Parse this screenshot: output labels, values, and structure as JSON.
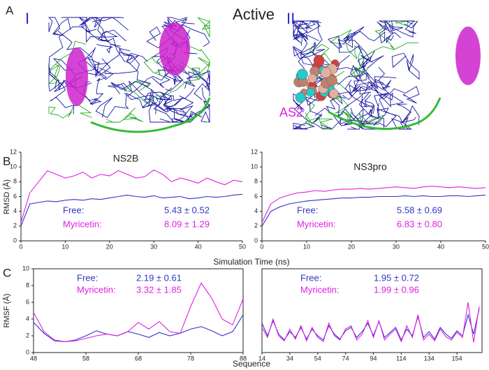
{
  "figure": {
    "panel_labels": [
      "A",
      "B",
      "C"
    ],
    "title": "Active",
    "structures": [
      {
        "label": "I"
      },
      {
        "label": "II",
        "site": "AS2"
      }
    ]
  },
  "chart_data": [
    {
      "type": "line",
      "title": "NS2B",
      "xlabel": "Simulation Time (ns)",
      "ylabel": "RMSD (Å)",
      "x": [
        0,
        2,
        4,
        6,
        8,
        10,
        12,
        14,
        16,
        18,
        20,
        22,
        24,
        26,
        28,
        30,
        32,
        34,
        36,
        38,
        40,
        42,
        44,
        46,
        48,
        50
      ],
      "series": [
        {
          "name": "Free",
          "color": "#3333cc",
          "values": [
            2.0,
            5.0,
            5.2,
            5.4,
            5.3,
            5.5,
            5.6,
            5.5,
            5.7,
            5.6,
            5.8,
            6.0,
            6.2,
            6.0,
            5.9,
            6.1,
            5.8,
            5.9,
            6.0,
            5.7,
            5.8,
            6.0,
            5.9,
            6.0,
            6.2,
            6.3
          ]
        },
        {
          "name": "Myricetin",
          "color": "#e020e0",
          "values": [
            2.5,
            6.5,
            8.0,
            9.5,
            9.0,
            8.5,
            8.8,
            9.3,
            8.5,
            9.0,
            8.8,
            9.5,
            9.0,
            8.5,
            8.7,
            9.6,
            9.0,
            8.0,
            8.5,
            8.2,
            7.8,
            8.5,
            8.0,
            7.6,
            8.2,
            8.0
          ]
        }
      ],
      "annotations": [
        {
          "label": "Free:",
          "text": "5.43 ± 0.52"
        },
        {
          "label": "Myricetin:",
          "text": "8.09 ± 1.29"
        }
      ],
      "xlim": [
        0,
        50
      ],
      "xticks": [
        0,
        10,
        20,
        30,
        40,
        50
      ],
      "ylim": [
        0,
        12
      ],
      "yticks": [
        0,
        2,
        4,
        6,
        8,
        10,
        12
      ]
    },
    {
      "type": "line",
      "title": "NS3pro",
      "x": [
        0,
        2,
        4,
        6,
        8,
        10,
        12,
        14,
        16,
        18,
        20,
        22,
        24,
        26,
        28,
        30,
        32,
        34,
        36,
        38,
        40,
        42,
        44,
        46,
        48,
        50
      ],
      "series": [
        {
          "name": "Free",
          "color": "#3333cc",
          "values": [
            2.0,
            4.0,
            4.6,
            5.0,
            5.2,
            5.4,
            5.5,
            5.6,
            5.7,
            5.8,
            5.8,
            5.9,
            5.9,
            6.0,
            6.0,
            6.0,
            6.1,
            6.0,
            6.1,
            6.0,
            6.0,
            6.1,
            6.1,
            6.0,
            6.1,
            6.2
          ]
        },
        {
          "name": "Myricetin",
          "color": "#e020e0",
          "values": [
            2.5,
            5.0,
            5.8,
            6.2,
            6.5,
            6.6,
            6.8,
            6.7,
            6.9,
            7.0,
            7.0,
            7.1,
            7.0,
            7.1,
            7.2,
            7.3,
            7.2,
            7.1,
            7.3,
            7.4,
            7.3,
            7.2,
            7.3,
            7.2,
            7.1,
            7.2
          ]
        }
      ],
      "annotations": [
        {
          "label": "Free:",
          "text": "5.58 ± 0.69"
        },
        {
          "label": "Myricetin:",
          "text": "6.83 ± 0.80"
        }
      ],
      "xlim": [
        0,
        50
      ],
      "xticks": [
        0,
        10,
        20,
        30,
        40,
        50
      ],
      "ylim": [
        0,
        12
      ],
      "yticks": [
        0,
        2,
        4,
        6,
        8,
        10,
        12
      ]
    },
    {
      "type": "line",
      "xlabel": "Sequence",
      "ylabel": "RMSF (Å)",
      "x": [
        48,
        50,
        52,
        54,
        56,
        58,
        60,
        62,
        64,
        66,
        68,
        70,
        72,
        74,
        76,
        78,
        80,
        82,
        84,
        86,
        88
      ],
      "series": [
        {
          "name": "Free",
          "color": "#3333cc",
          "values": [
            3.6,
            2.3,
            1.4,
            1.3,
            1.5,
            2.0,
            2.6,
            2.2,
            2.0,
            2.5,
            2.2,
            1.8,
            2.4,
            2.0,
            2.3,
            2.8,
            3.1,
            2.6,
            2.0,
            2.5,
            4.5
          ]
        },
        {
          "name": "Myricetin",
          "color": "#e020e0",
          "values": [
            4.8,
            2.5,
            1.5,
            1.3,
            1.4,
            1.7,
            2.0,
            2.2,
            2.0,
            2.5,
            3.6,
            2.8,
            3.7,
            2.5,
            2.3,
            5.5,
            8.3,
            6.5,
            4.0,
            3.3,
            6.4
          ]
        }
      ],
      "annotations": [
        {
          "label": "Free:",
          "text": "2.19 ± 0.61"
        },
        {
          "label": "Myricetin:",
          "text": "3.32 ± 1.85"
        }
      ],
      "xlim": [
        48,
        88
      ],
      "xticks": [
        48,
        58,
        68,
        78,
        88
      ],
      "ylim": [
        0,
        10
      ],
      "yticks": [
        0,
        2,
        4,
        6,
        8,
        10
      ]
    },
    {
      "type": "line",
      "x": [
        14,
        18,
        22,
        26,
        30,
        34,
        38,
        42,
        46,
        50,
        54,
        58,
        62,
        66,
        70,
        74,
        78,
        82,
        86,
        90,
        94,
        98,
        102,
        106,
        110,
        114,
        118,
        122,
        126,
        130,
        134,
        138,
        142,
        146,
        150,
        154,
        158,
        162,
        166,
        170
      ],
      "series": [
        {
          "name": "Free",
          "color": "#3333cc",
          "values": [
            3.5,
            2.0,
            3.8,
            2.2,
            1.5,
            2.5,
            1.8,
            3.0,
            1.6,
            2.8,
            2.0,
            1.5,
            3.2,
            2.2,
            1.6,
            2.6,
            3.0,
            1.8,
            2.5,
            3.5,
            2.0,
            3.7,
            1.8,
            2.4,
            3.0,
            1.5,
            2.8,
            2.0,
            4.3,
            1.8,
            2.5,
            1.6,
            3.0,
            2.2,
            1.7,
            2.6,
            2.0,
            4.5,
            2.2,
            5.2
          ]
        },
        {
          "name": "Myricetin",
          "color": "#e020e0",
          "values": [
            3.0,
            1.8,
            4.0,
            2.0,
            1.4,
            2.8,
            1.6,
            3.2,
            1.4,
            3.0,
            1.8,
            1.3,
            3.5,
            2.0,
            1.5,
            2.8,
            3.2,
            1.5,
            2.2,
            3.8,
            1.8,
            3.8,
            1.5,
            2.2,
            2.8,
            1.3,
            3.2,
            1.8,
            4.5,
            1.5,
            2.2,
            1.4,
            2.8,
            1.9,
            1.5,
            2.4,
            1.8,
            6.0,
            1.2,
            5.5
          ]
        }
      ],
      "annotations": [
        {
          "label": "Free:",
          "text": "1.95 ± 0.72"
        },
        {
          "label": "Myricetin:",
          "text": "1.99 ± 0.96"
        }
      ],
      "xlim": [
        14,
        172
      ],
      "xticks": [
        14,
        34,
        54,
        74,
        94,
        114,
        134,
        154
      ],
      "ylim": [
        0,
        10
      ]
    }
  ]
}
